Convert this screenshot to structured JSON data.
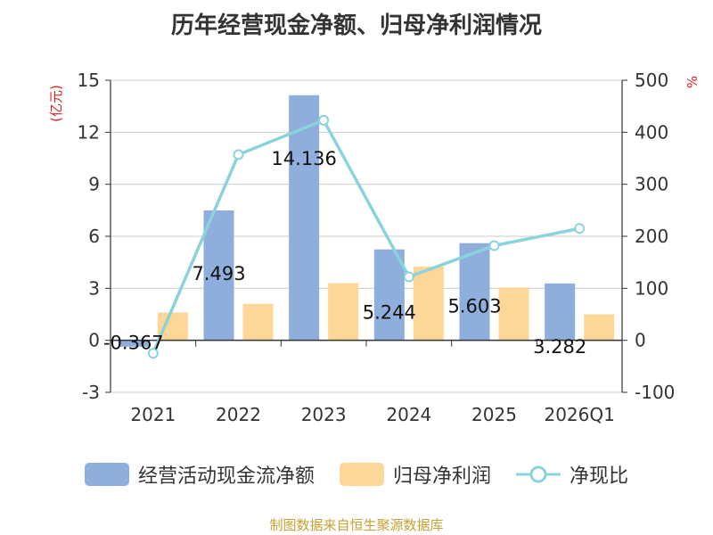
{
  "chart_data": {
    "type": "bar+line",
    "title": "历年经营现金净额、归母净利润情况",
    "categories": [
      "2021",
      "2022",
      "2023",
      "2024",
      "2025",
      "2026Q1"
    ],
    "series": [
      {
        "name": "经营活动现金流净额",
        "type": "bar",
        "axis": "left",
        "color": "#8eaedc",
        "values": [
          -0.367,
          7.493,
          14.136,
          5.244,
          5.603,
          3.282
        ],
        "labels": [
          "-0.367",
          "7.493",
          "14.136",
          "5.244",
          "5.603",
          "3.282"
        ]
      },
      {
        "name": "归母净利润",
        "type": "bar",
        "axis": "left",
        "color": "#fdd797",
        "values": [
          1.6,
          2.1,
          3.3,
          4.25,
          3.05,
          1.5
        ]
      },
      {
        "name": "净现比",
        "type": "line",
        "axis": "right",
        "color": "#8bd3da",
        "values": [
          -25,
          357,
          423,
          122,
          182,
          215
        ]
      }
    ],
    "y_left": {
      "label": "(亿元)",
      "min": -3,
      "max": 15,
      "ticks": [
        "-3",
        "0",
        "3",
        "6",
        "9",
        "12",
        "15"
      ]
    },
    "y_right": {
      "label": "%",
      "min": -100,
      "max": 500,
      "ticks": [
        "-100",
        "0",
        "100",
        "200",
        "300",
        "400",
        "500"
      ]
    }
  },
  "legend": {
    "items": [
      {
        "name": "经营活动现金流净额",
        "color": "#8eaedc",
        "kind": "bar"
      },
      {
        "name": "归母净利润",
        "color": "#fdd797",
        "kind": "bar"
      },
      {
        "name": "净现比",
        "color": "#8bd3da",
        "kind": "line"
      }
    ]
  },
  "source": "制图数据来自恒生聚源数据库"
}
